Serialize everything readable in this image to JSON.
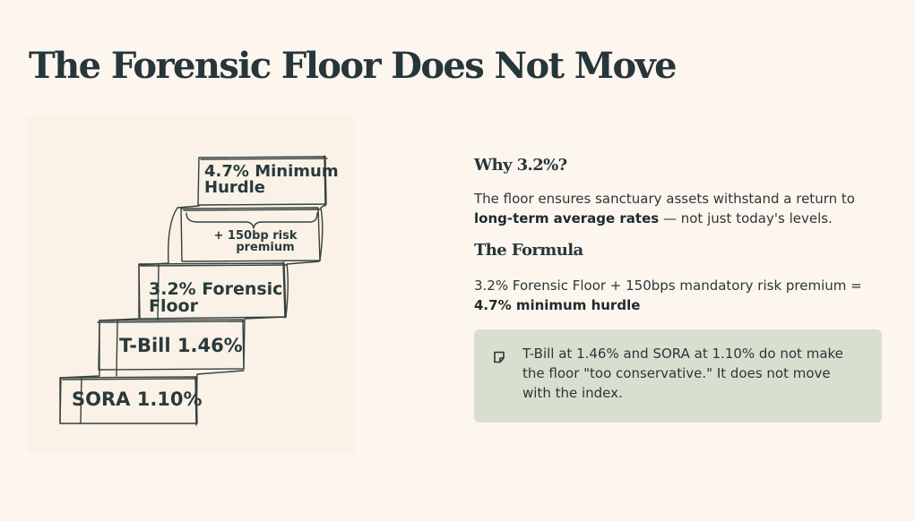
{
  "page": {
    "title": "The Forensic Floor Does Not Move"
  },
  "diagram": {
    "steps": [
      {
        "id": "sora",
        "label": "SORA 1.10%"
      },
      {
        "id": "tbill",
        "label": "T-Bill 1.46%"
      },
      {
        "id": "floor",
        "line1": "3.2% Forensic",
        "line2": "Floor"
      },
      {
        "id": "premium",
        "line1": "+ 150bp risk",
        "line2": "premium"
      },
      {
        "id": "hurdle",
        "line1": "4.7% Minimum",
        "line2": "Hurdle"
      }
    ]
  },
  "why": {
    "heading": "Why 3.2%?",
    "text_a": "The floor ensures sanctuary assets withstand a return to ",
    "text_bold": "long-term average rates",
    "text_b": " — not just today's levels."
  },
  "formula": {
    "heading": "The Formula",
    "text_a": "3.2% Forensic Floor + 150bps mandatory risk premium = ",
    "text_bold": "4.7% minimum hurdle"
  },
  "callout": {
    "icon": "note-icon",
    "text": "T-Bill at 1.46% and SORA at 1.10% do not make the floor \"too conservative.\" It does not move with the index."
  }
}
